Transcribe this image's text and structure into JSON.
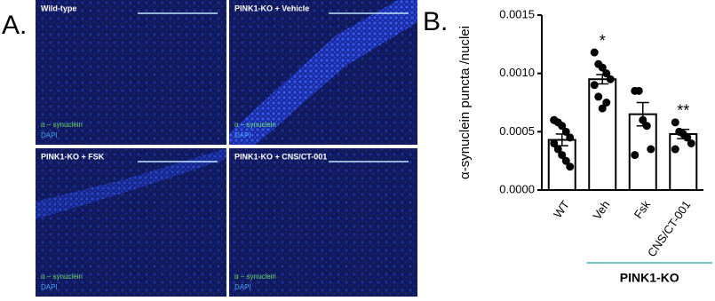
{
  "panel_a": {
    "label": "A.",
    "images": [
      {
        "title": "Wild-type",
        "legend": [
          "α – synuclein",
          "DAPI"
        ]
      },
      {
        "title": "PINK1-KO + Vehicle",
        "legend": [
          "α – synuclein",
          "DAPI"
        ]
      },
      {
        "title": "PINK1-KO + FSK",
        "legend": [
          "α – synuclein",
          "DAPI"
        ]
      },
      {
        "title": "PINK1-KO + CNS/CT-001",
        "legend": [
          "α – synuclein",
          "DAPI"
        ]
      }
    ]
  },
  "chart_data": {
    "type": "bar",
    "panel_label": "B.",
    "y_label": "α-synuclein puncta /nuclei",
    "categories": [
      "WT",
      "Veh",
      "Fsk",
      "CNS/CT-001"
    ],
    "values": [
      0.00043,
      0.00095,
      0.00065,
      0.00048
    ],
    "errors": [
      5e-05,
      4e-05,
      0.0001,
      4e-05
    ],
    "points": [
      [
        0.0006,
        0.00058,
        0.00055,
        0.0005,
        0.00045,
        0.0004,
        0.00035,
        0.0003,
        0.00025,
        0.0002,
        0.0006
      ],
      [
        0.00118,
        0.00108,
        0.00105,
        0.001,
        0.00095,
        0.0009,
        0.0008,
        0.0007,
        0.00075
      ],
      [
        0.00085,
        0.00085,
        0.0006,
        0.00055,
        0.00035,
        0.0003
      ],
      [
        0.00058,
        0.0005,
        0.00048,
        0.00045,
        0.0004,
        0.00035
      ]
    ],
    "color": "#ffffff",
    "ylim": [
      0,
      0.0015
    ],
    "yticks": [
      {
        "value": 0,
        "label": "0.0000"
      },
      {
        "value": 0.0005,
        "label": "0.0005"
      },
      {
        "value": 0.001,
        "label": "0.0010"
      },
      {
        "value": 0.0015,
        "label": "0.0015"
      }
    ],
    "annotations": [
      {
        "text": "*",
        "x": "Veh"
      },
      {
        "text": "**",
        "x": "CNS/CT-001"
      }
    ],
    "group": {
      "label": "PINK1-KO",
      "from": "Veh",
      "to": "CNS/CT-001"
    }
  }
}
